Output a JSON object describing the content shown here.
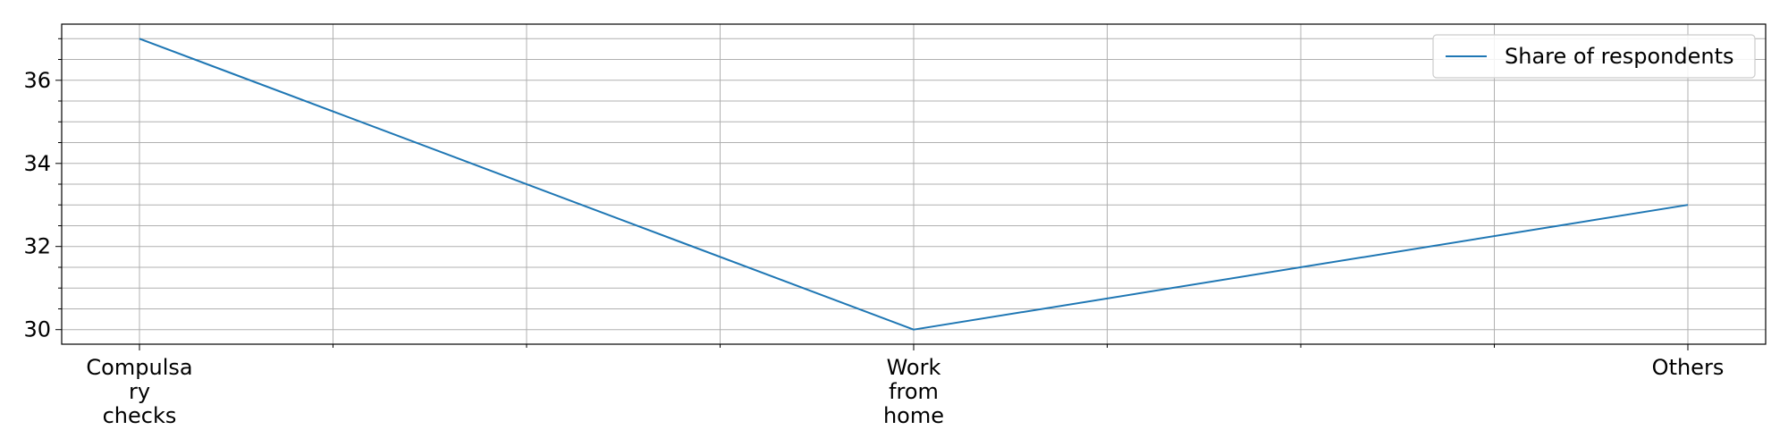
{
  "chart_data": {
    "type": "line",
    "categories": [
      "Compulsary checks",
      "Work from home",
      "Others"
    ],
    "x_tick_lines": [
      [
        "Compulsa",
        "ry",
        "checks"
      ],
      [
        "Work",
        "from",
        "home"
      ],
      [
        "Others"
      ]
    ],
    "series": [
      {
        "name": "Share of respondents",
        "values": [
          37,
          30,
          33
        ],
        "color": "#1f77b4"
      }
    ],
    "yticks": [
      30,
      32,
      34,
      36
    ],
    "ylim": [
      29.65,
      37.35
    ],
    "minor_y_step": 0.5,
    "minor_x_per_major": 4,
    "grid": true,
    "legend_position": "top-right",
    "grid_color": "#b0b0b0",
    "title": "",
    "xlabel": "",
    "ylabel": ""
  }
}
